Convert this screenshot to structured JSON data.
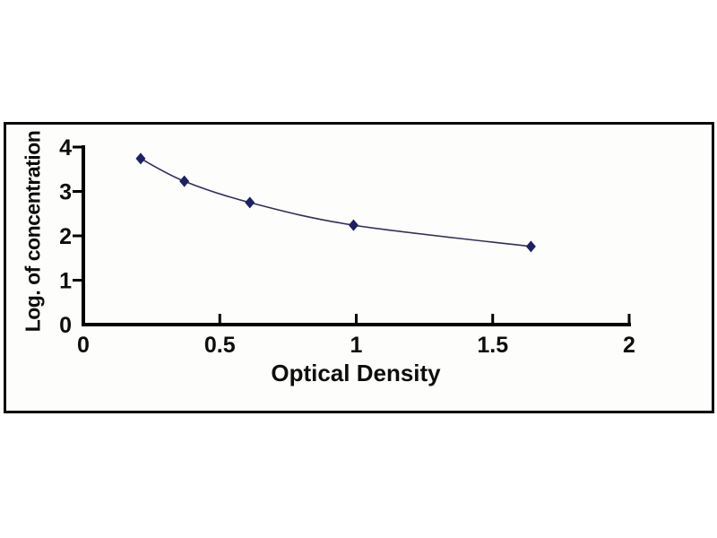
{
  "chart_data": {
    "type": "line",
    "title": "",
    "xlabel": "Optical Density",
    "ylabel": "Log. of concentration",
    "x": [
      0.21,
      0.37,
      0.61,
      0.99,
      1.64
    ],
    "y": [
      3.74,
      3.23,
      2.75,
      2.24,
      1.76
    ],
    "xlim": [
      0,
      2
    ],
    "ylim": [
      0,
      4
    ],
    "x_ticks": {
      "values": [
        0,
        0.5,
        1,
        1.5,
        2
      ],
      "labels": [
        "0",
        "0.5",
        "1",
        "1.5",
        "2"
      ]
    },
    "y_ticks": {
      "values": [
        0,
        1,
        2,
        3,
        4
      ],
      "labels": [
        "0",
        "1",
        "2",
        "3",
        "4"
      ]
    },
    "grid": false,
    "legend": false,
    "marker": "diamond",
    "colors": {
      "marker": "#1e2066",
      "line": "#30305a",
      "axis": "#000000",
      "text": "#0d0d0d",
      "frame_border": "#0a0a0a",
      "background": "#ffffff"
    }
  }
}
